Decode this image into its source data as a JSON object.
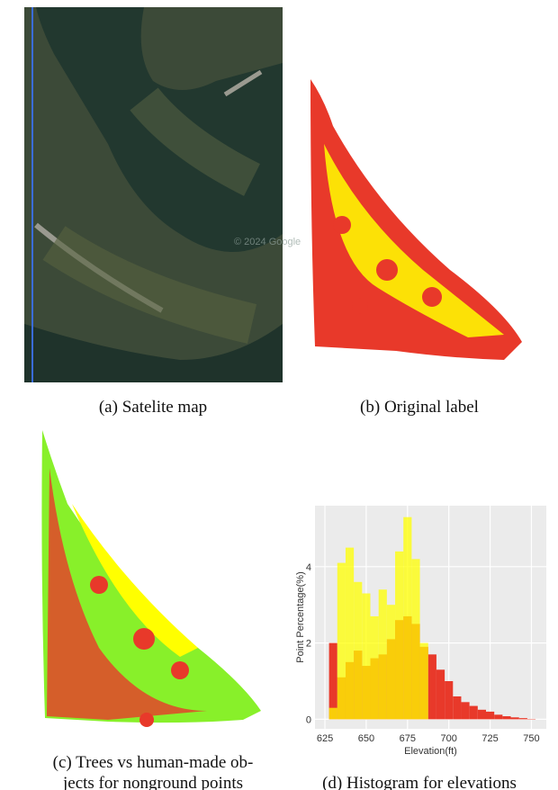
{
  "figure": {
    "captions": {
      "a": "(a) Satelite map",
      "b": "(b) Original label",
      "c": [
        "(c) Trees vs human-made ob-",
        "jects for nonground points"
      ],
      "d": "(d) Histogram for elevations"
    },
    "map_watermark": "© 2024 Google"
  },
  "chart_data": {
    "type": "histogram",
    "xlabel": "Elevation(ft)",
    "ylabel": "Point Percentage(%)",
    "bins": [
      627.5,
      632.5,
      637.5,
      642.5,
      647.5,
      652.5,
      657.5,
      662.5,
      667.5,
      672.5,
      677.5,
      682.5,
      687.5,
      692.5,
      697.5,
      702.5,
      707.5,
      712.5,
      717.5,
      722.5,
      727.5,
      732.5,
      737.5,
      742.5,
      747.5,
      752.5
    ],
    "series": [
      {
        "color": "#e8392a",
        "values": [
          2.0,
          1.1,
          1.5,
          1.8,
          1.4,
          1.6,
          1.7,
          2.1,
          2.6,
          2.7,
          2.5,
          1.9,
          1.7,
          1.3,
          1.0,
          0.6,
          0.45,
          0.35,
          0.25,
          0.2,
          0.12,
          0.08,
          0.05,
          0.03,
          0.01
        ]
      },
      {
        "color": "#ffff00",
        "values": [
          0.3,
          4.1,
          4.5,
          3.6,
          3.3,
          2.7,
          3.4,
          3.0,
          4.4,
          5.3,
          4.2,
          2.0,
          0,
          0,
          0,
          0,
          0,
          0,
          0,
          0,
          0,
          0,
          0,
          0,
          0
        ]
      }
    ],
    "xlim": [
      619,
      759
    ],
    "ylim": [
      -0.25,
      5.6
    ],
    "xticks": [
      625,
      650,
      675,
      700,
      725,
      750
    ],
    "yticks": [
      0,
      2,
      4
    ],
    "grid": true,
    "background": "#ebebeb"
  }
}
